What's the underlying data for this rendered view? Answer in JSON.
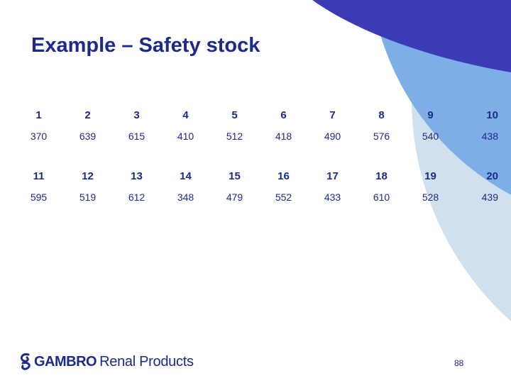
{
  "slide": {
    "title": "Example – Safety stock",
    "page_number": "88"
  },
  "table": {
    "block1": {
      "periods": [
        "1",
        "2",
        "3",
        "4",
        "5",
        "6",
        "7",
        "8",
        "9",
        "10"
      ],
      "values": [
        "370",
        "639",
        "615",
        "410",
        "512",
        "418",
        "490",
        "576",
        "540",
        "438"
      ]
    },
    "block2": {
      "periods": [
        "11",
        "12",
        "13",
        "14",
        "15",
        "16",
        "17",
        "18",
        "19",
        "20"
      ],
      "values": [
        "595",
        "519",
        "612",
        "348",
        "479",
        "552",
        "433",
        "610",
        "528",
        "439"
      ]
    }
  },
  "logo": {
    "brand": "GAMBRO",
    "sub": "Renal Products"
  },
  "colors": {
    "text": "#1c2a8a",
    "arc_dark": "#3b3bb5",
    "arc_mid": "#7eaee8",
    "arc_light": "#cfe0ef"
  }
}
